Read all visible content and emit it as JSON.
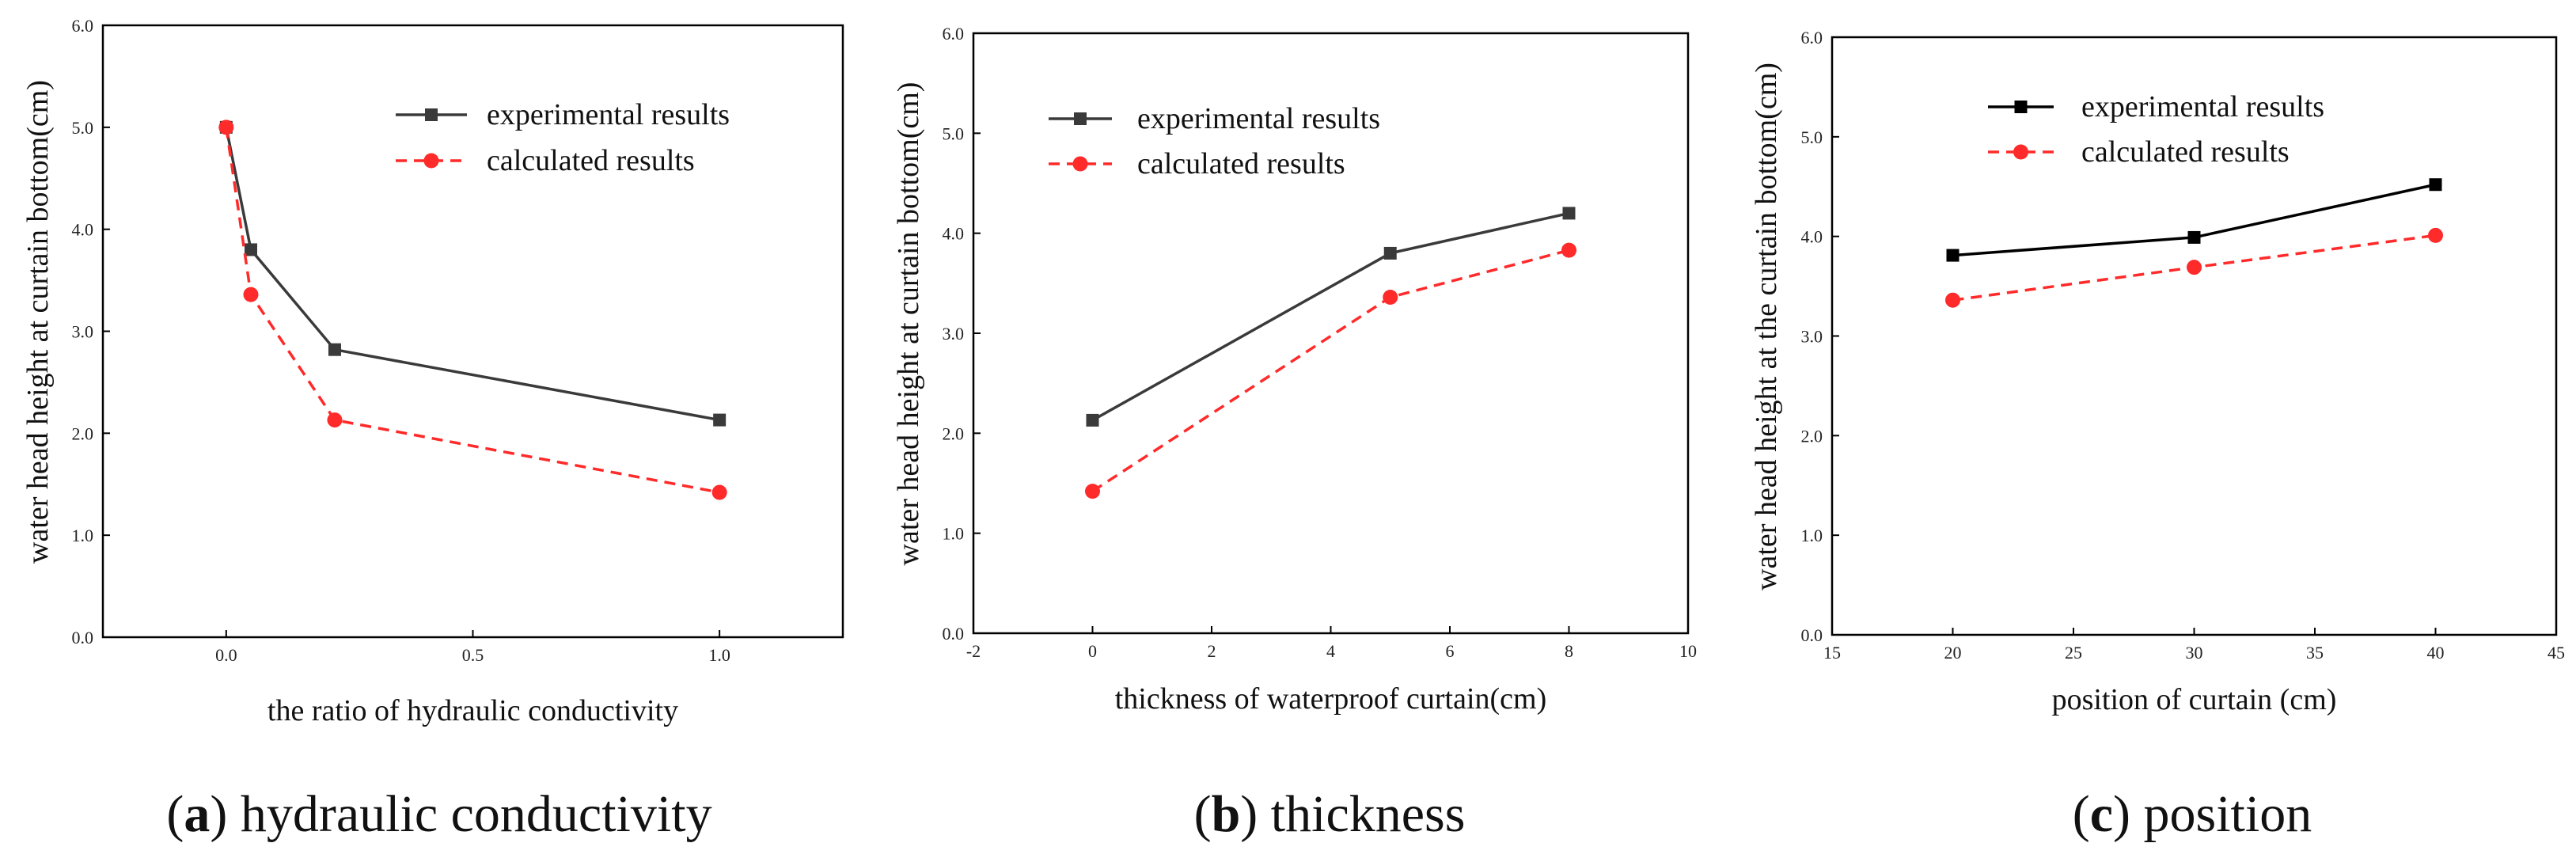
{
  "colors": {
    "experimental_a": "#3a3a3a",
    "experimental_b": "#3a3a3a",
    "experimental_c": "#000000",
    "calculated": "#ff2a2a"
  },
  "chart_data": [
    {
      "type": "line",
      "panel": "a",
      "caption_letter": "a",
      "caption_text": " hydraulic conductivity",
      "xlabel": "the ratio of hydraulic conductivity",
      "ylabel": "water head height at curtain bottom(cm)",
      "xlim": [
        -0.25,
        1.25
      ],
      "ylim": [
        0.0,
        6.0
      ],
      "xticks": [
        0.0,
        0.5,
        1.0
      ],
      "xtick_labels": [
        "0.0",
        "0.5",
        "1.0"
      ],
      "yticks": [
        0.0,
        1.0,
        2.0,
        3.0,
        4.0,
        5.0,
        6.0
      ],
      "ytick_labels": [
        "0.0",
        "1.0",
        "2.0",
        "3.0",
        "4.0",
        "5.0",
        "6.0"
      ],
      "legend_position": "top-right",
      "series": [
        {
          "name": "experimental results",
          "style": "experimental",
          "x": [
            0.0,
            0.05,
            0.22,
            1.0
          ],
          "y": [
            5.0,
            3.8,
            2.82,
            2.13
          ]
        },
        {
          "name": "calculated results",
          "style": "calculated",
          "x": [
            0.0,
            0.05,
            0.22,
            1.0
          ],
          "y": [
            5.0,
            3.36,
            2.13,
            1.42
          ]
        }
      ]
    },
    {
      "type": "line",
      "panel": "b",
      "caption_letter": "b",
      "caption_text": " thickness",
      "xlabel": "thickness of waterproof curtain(cm)",
      "ylabel": "water head height at curtain bottom(cm)",
      "xlim": [
        -2,
        10
      ],
      "ylim": [
        0.0,
        6.0
      ],
      "xticks": [
        -2,
        0,
        2,
        4,
        6,
        8,
        10
      ],
      "xtick_labels": [
        "-2",
        "0",
        "2",
        "4",
        "6",
        "8",
        "10"
      ],
      "yticks": [
        0.0,
        1.0,
        2.0,
        3.0,
        4.0,
        5.0,
        6.0
      ],
      "ytick_labels": [
        "0.0",
        "1.0",
        "2.0",
        "3.0",
        "4.0",
        "5.0",
        "6.0"
      ],
      "legend_position": "top-left",
      "series": [
        {
          "name": "experimental results",
          "style": "experimental",
          "x": [
            0,
            5,
            8
          ],
          "y": [
            2.13,
            3.8,
            4.2
          ]
        },
        {
          "name": "calculated results",
          "style": "calculated",
          "x": [
            0,
            5,
            8
          ],
          "y": [
            1.42,
            3.36,
            3.83
          ]
        }
      ]
    },
    {
      "type": "line",
      "panel": "c",
      "caption_letter": "c",
      "caption_text": " position",
      "xlabel": "position of curtain (cm)",
      "ylabel": "water head height at the curtain bottom(cm)",
      "xlim": [
        15,
        45
      ],
      "ylim": [
        0.0,
        6.0
      ],
      "xticks": [
        15,
        20,
        25,
        30,
        35,
        40,
        45
      ],
      "xtick_labels": [
        "15",
        "20",
        "25",
        "30",
        "35",
        "40",
        "45"
      ],
      "yticks": [
        0.0,
        1.0,
        2.0,
        3.0,
        4.0,
        5.0,
        6.0
      ],
      "ytick_labels": [
        "0.0",
        "1.0",
        "2.0",
        "3.0",
        "4.0",
        "5.0",
        "6.0"
      ],
      "legend_position": "top-center",
      "series": [
        {
          "name": "experimental results",
          "style": "experimental",
          "x": [
            20,
            30,
            40
          ],
          "y": [
            3.81,
            3.99,
            4.52
          ]
        },
        {
          "name": "calculated results",
          "style": "calculated",
          "x": [
            20,
            30,
            40
          ],
          "y": [
            3.36,
            3.69,
            4.01
          ]
        }
      ]
    }
  ]
}
